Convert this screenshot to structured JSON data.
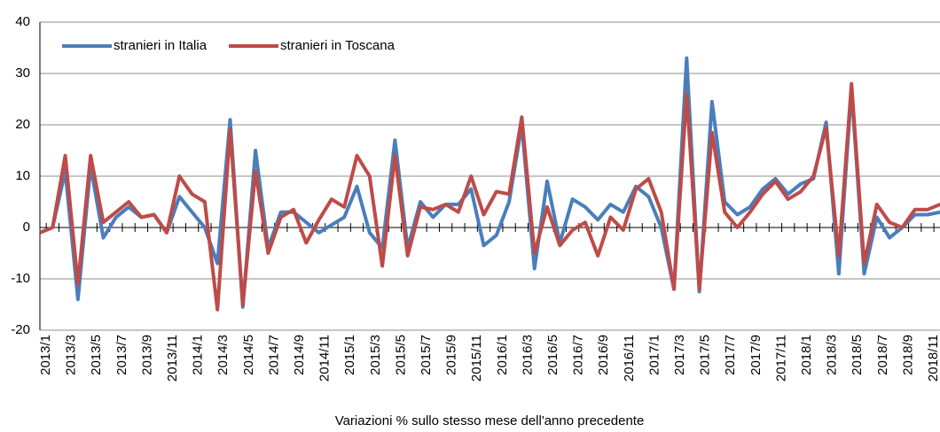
{
  "chart_data": {
    "type": "line",
    "xlabel": "Variazioni % sullo stesso mese dell'anno precedente",
    "categories": [
      "2013/1",
      null,
      "2013/3",
      null,
      "2013/5",
      null,
      "2013/7",
      null,
      "2013/9",
      null,
      "2013/11",
      null,
      "2014/1",
      null,
      "2014/3",
      null,
      "2014/5",
      null,
      "2014/7",
      null,
      "2014/9",
      null,
      "2014/11",
      null,
      "2015/1",
      null,
      "2015/3",
      null,
      "2015/5",
      null,
      "2015/7",
      null,
      "2015/9",
      null,
      "2015/11",
      null,
      "2016/1",
      null,
      "2016/3",
      null,
      "2016/5",
      null,
      "2016/7",
      null,
      "2016/9",
      null,
      "2016/11",
      null,
      "2017/1",
      null,
      "2017/3",
      null,
      "2017/5",
      null,
      "2017/7",
      null,
      "2017/9",
      null,
      "2017/11",
      null,
      "2018/1",
      null,
      "2018/3",
      null,
      "2018/5",
      null,
      "2018/7",
      null,
      "2018/9",
      null,
      "2018/11",
      null
    ],
    "series": [
      {
        "name": "stranieri in Italia",
        "color": "#4a7ebb",
        "values": [
          -1,
          0,
          11,
          -14,
          12,
          -2,
          2,
          4,
          2,
          2.5,
          -1,
          6,
          3,
          0,
          -7,
          21,
          -15.5,
          15,
          -4,
          3,
          3,
          1,
          -1,
          0.5,
          2,
          8,
          -1,
          -4,
          17,
          -4,
          5,
          2,
          4.5,
          4.5,
          7.5,
          -3.5,
          -1.5,
          5,
          20,
          -8,
          9,
          -3,
          5.5,
          4,
          1.5,
          4.5,
          3,
          8,
          6,
          0,
          -12,
          33,
          -12.5,
          24.5,
          5,
          2.5,
          4,
          7.5,
          9.5,
          6.5,
          8.5,
          9.5,
          20.5,
          -9,
          27,
          -9,
          2,
          -2,
          0,
          2.5,
          2.5,
          3
        ]
      },
      {
        "name": "stranieri in Toscana",
        "color": "#be4b48",
        "values": [
          -1,
          0,
          14,
          -11,
          14,
          1,
          3,
          5,
          2,
          2.5,
          -1,
          10,
          6.5,
          5,
          -16,
          19,
          -15,
          11,
          -5,
          2,
          3.5,
          -3,
          1.5,
          5.5,
          4,
          14,
          10,
          -7.5,
          14,
          -5.5,
          4,
          3.5,
          4.5,
          3,
          10,
          2.5,
          7,
          6.5,
          21.5,
          -5,
          4,
          -3.5,
          -0.5,
          1,
          -5.5,
          2,
          -0.5,
          7.5,
          9.5,
          3,
          -12,
          26,
          -12,
          18.5,
          3,
          0,
          3,
          6.5,
          9,
          5.5,
          7,
          10,
          19.5,
          -5.5,
          28,
          -7,
          4.5,
          1,
          0,
          3.5,
          3.5,
          4.5
        ]
      }
    ],
    "ylim": [
      -20,
      40
    ],
    "yticks": [
      -20,
      -10,
      0,
      10,
      20,
      30,
      40
    ],
    "grid": true,
    "legend": "upper left"
  }
}
